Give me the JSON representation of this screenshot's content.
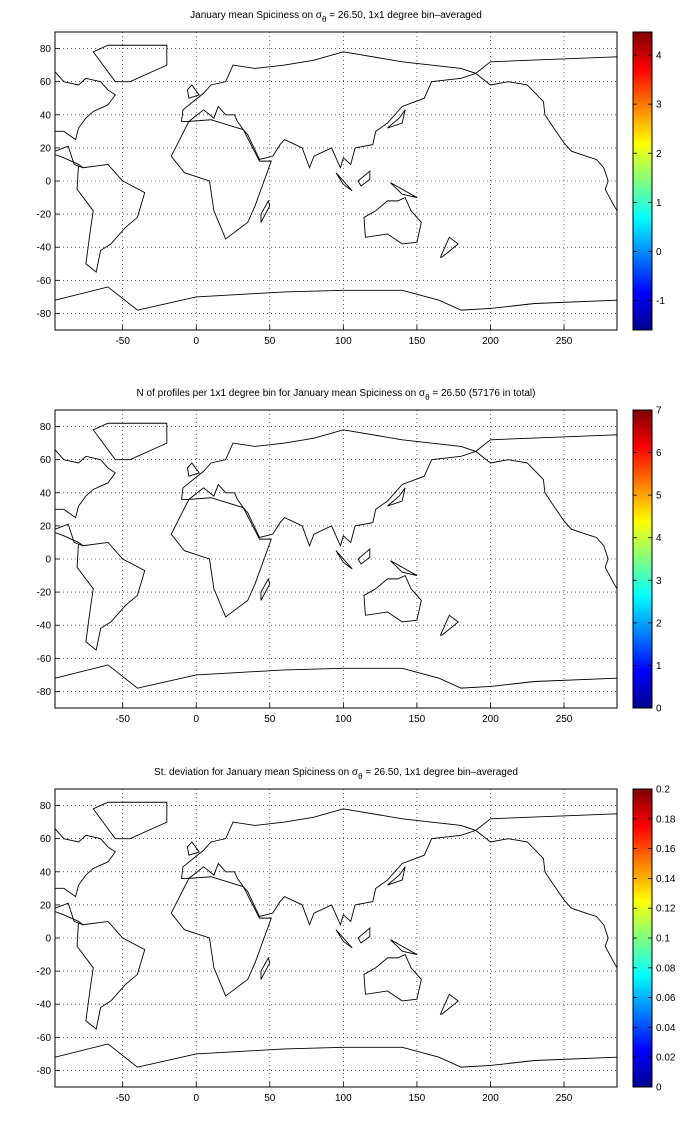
{
  "chart_data": [
    {
      "type": "map",
      "title": {
        "before": "January mean Spiciness on σ",
        "sub": "θ",
        "after": " = 26.50, 1x1 degree bin–averaged"
      },
      "xlim": [
        -96,
        286
      ],
      "ylim": [
        -90,
        90
      ],
      "xticks": [
        -50,
        0,
        50,
        100,
        150,
        200,
        250
      ],
      "yticks": [
        -80,
        -60,
        -40,
        -20,
        0,
        20,
        40,
        60,
        80
      ],
      "grid": true,
      "colorbar": {
        "colormap": "jet",
        "clim": [
          -1.6,
          4.47
        ],
        "ticks": [
          -1,
          0,
          1,
          2,
          3,
          4
        ]
      }
    },
    {
      "type": "map",
      "title": {
        "before": "N of profiles per 1x1 degree bin for January mean Spiciness on σ",
        "sub": "θ",
        "after": " = 26.50 (57176 in total)"
      },
      "xlim": [
        -96,
        286
      ],
      "ylim": [
        -90,
        90
      ],
      "xticks": [
        -50,
        0,
        50,
        100,
        150,
        200,
        250
      ],
      "yticks": [
        -80,
        -60,
        -40,
        -20,
        0,
        20,
        40,
        60,
        80
      ],
      "grid": true,
      "colorbar": {
        "colormap": "jet",
        "clim": [
          0,
          7
        ],
        "ticks": [
          0,
          1,
          2,
          3,
          4,
          5,
          6,
          7
        ]
      }
    },
    {
      "type": "map",
      "title": {
        "before": "St. deviation for January mean Spiciness on σ",
        "sub": "θ",
        "after": " = 26.50, 1x1 degree bin–averaged"
      },
      "xlim": [
        -96,
        286
      ],
      "ylim": [
        -90,
        90
      ],
      "xticks": [
        -50,
        0,
        50,
        100,
        150,
        200,
        250
      ],
      "yticks": [
        -80,
        -60,
        -40,
        -20,
        0,
        20,
        40,
        60,
        80
      ],
      "grid": true,
      "colorbar": {
        "colormap": "jet",
        "clim": [
          0,
          0.2
        ],
        "ticks": [
          0,
          0.02,
          0.04,
          0.06,
          0.08,
          0.1,
          0.12,
          0.14,
          0.16,
          0.18,
          0.2
        ]
      }
    }
  ]
}
